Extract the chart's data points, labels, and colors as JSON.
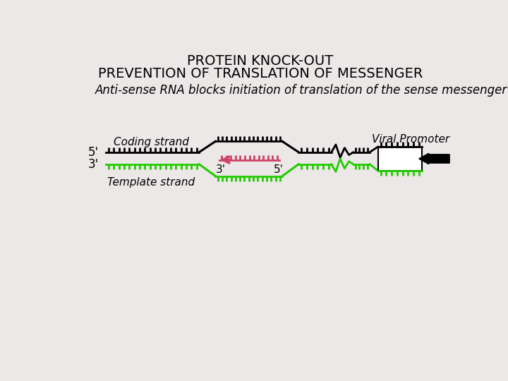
{
  "title_line1": "PROTEIN KNOCK-OUT",
  "title_line2": "PREVENTION OF TRANSLATION OF MESSENGER",
  "subtitle": "Anti-sense RNA blocks initiation of translation of the sense messenger",
  "bg_color": "#ede8e8",
  "coding_strand_label": "Coding strand",
  "template_strand_label": "Template strand",
  "viral_promoter_label": "Viral Promoter",
  "black_color": "#000000",
  "green_color": "#22cc00",
  "pink_color": "#cc4466",
  "white_color": "#ffffff",
  "title_fontsize": 14,
  "subtitle_fontsize": 12,
  "label_fontsize": 11
}
